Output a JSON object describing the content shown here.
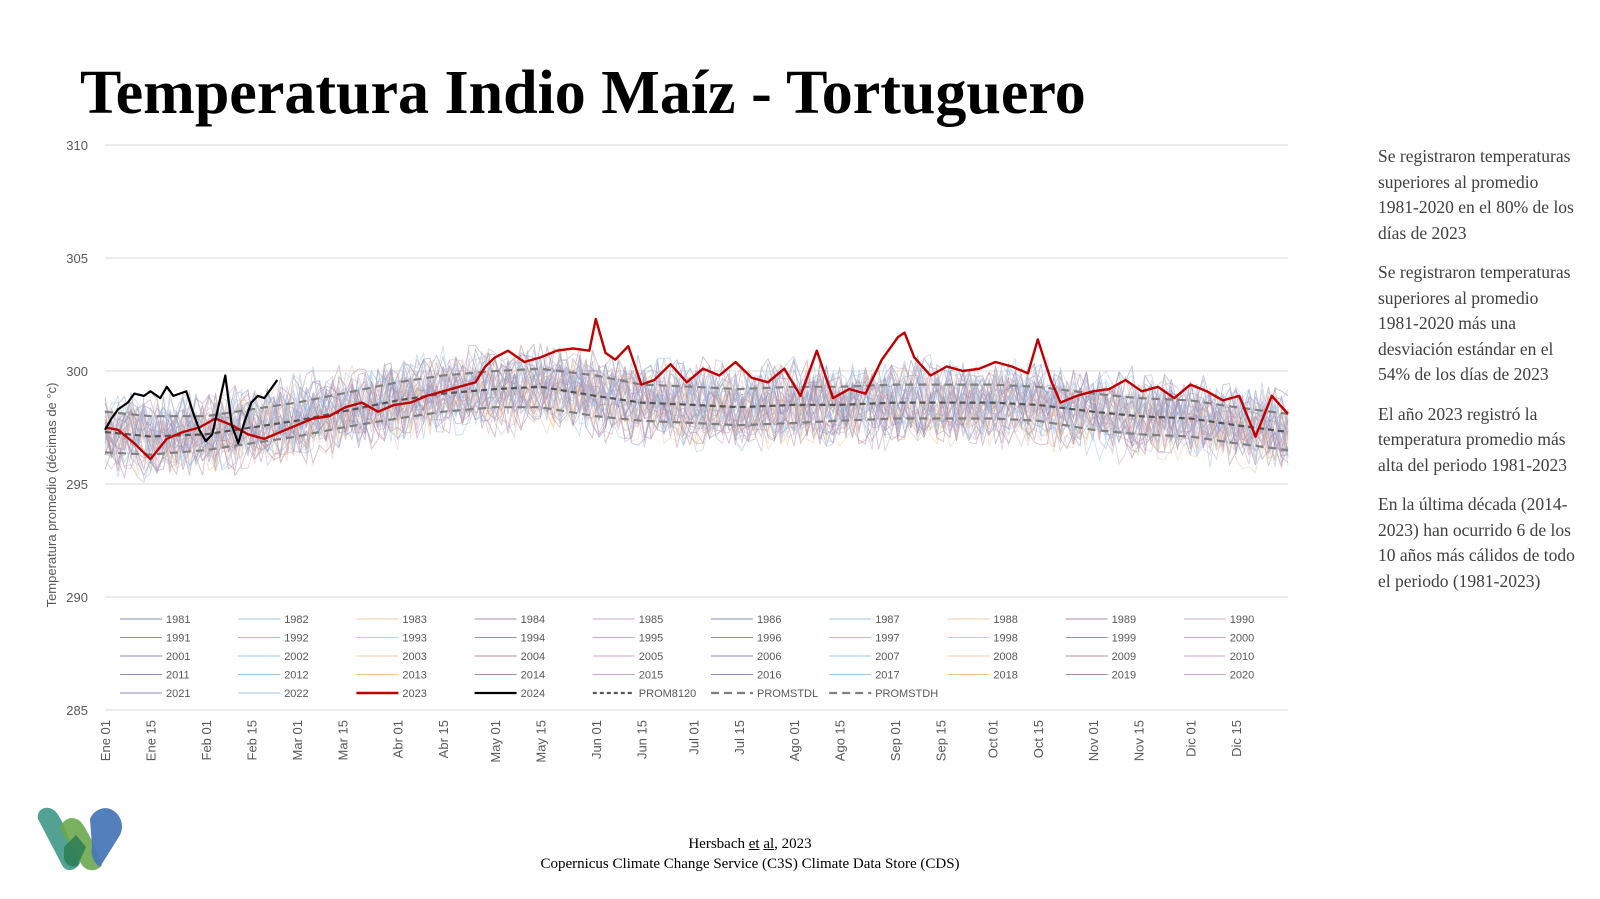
{
  "title": "Temperatura Indio Maíz - Tortuguero",
  "notes": [
    "Se registraron temperaturas superiores al promedio 1981-2020 en el 80% de los días de 2023",
    "Se registraron temperaturas superiores al promedio 1981-2020 más una desviación estándar en el 54% de los días de 2023",
    "El año 2023 registró la temperatura promedio más alta del periodo 1981-2023",
    "En la última década (2014-2023) han ocurrido 6 de los 10 años más cálidos de todo el periodo (1981-2023)"
  ],
  "source": {
    "author": "Hersbach",
    "et": "et",
    "al": "al",
    "year": ", 2023",
    "line2": "Copernicus Climate Change Service (C3S) Climate Data Store (CDS)"
  },
  "logo": {
    "icon": "w-logo-icon",
    "colors": [
      "#4a9c8c",
      "#6aa84f",
      "#4a78b8",
      "#2e7d55"
    ]
  },
  "chart_data": {
    "type": "line",
    "title": "",
    "xlabel": "",
    "ylabel": "Temperatura promedio (décimas de °c)",
    "ylim": [
      285,
      310
    ],
    "yticks": [
      285,
      290,
      295,
      300,
      305,
      310
    ],
    "grid": true,
    "legend_position": "inside-bottom",
    "xticks": [
      "Ene 01",
      "Ene 15",
      "Feb 01",
      "Feb 15",
      "Mar 01",
      "Mar 15",
      "Abr 01",
      "Abr 15",
      "May 01",
      "May 15",
      "Jun 01",
      "Jun 15",
      "Jul 01",
      "Jul 15",
      "Ago 01",
      "Ago 15",
      "Sep 01",
      "Sep 15",
      "Oct 01",
      "Oct 15",
      "Nov 01",
      "Nov 15",
      "Dic 01",
      "Dic 15"
    ],
    "xtick_days": [
      1,
      15,
      32,
      46,
      60,
      74,
      91,
      105,
      121,
      135,
      152,
      166,
      182,
      196,
      213,
      227,
      244,
      258,
      274,
      288,
      305,
      319,
      335,
      349
    ],
    "colors": {
      "palette": [
        "#8a8fb8",
        "#9fc5e8",
        "#f0c8a0",
        "#b48aa0",
        "#c9a9c9"
      ],
      "y2023": "#c00000",
      "y2024": "#000000",
      "mean": "#555555",
      "std": "#808080"
    },
    "series": [
      {
        "name": "1981",
        "style": "faint"
      },
      {
        "name": "1982",
        "style": "faint"
      },
      {
        "name": "1983",
        "style": "faint"
      },
      {
        "name": "1984",
        "style": "faint"
      },
      {
        "name": "1985",
        "style": "faint"
      },
      {
        "name": "1986",
        "style": "faint"
      },
      {
        "name": "1987",
        "style": "faint"
      },
      {
        "name": "1988",
        "style": "faint"
      },
      {
        "name": "1989",
        "style": "faint"
      },
      {
        "name": "1990",
        "style": "faint"
      },
      {
        "name": "1991",
        "style": "faint"
      },
      {
        "name": "1992",
        "style": "faint"
      },
      {
        "name": "1993",
        "style": "faint"
      },
      {
        "name": "1994",
        "style": "faint"
      },
      {
        "name": "1995",
        "style": "faint"
      },
      {
        "name": "1996",
        "style": "faint"
      },
      {
        "name": "1997",
        "style": "faint"
      },
      {
        "name": "1998",
        "style": "faint"
      },
      {
        "name": "1999",
        "style": "faint"
      },
      {
        "name": "2000",
        "style": "faint"
      },
      {
        "name": "2001",
        "style": "faint"
      },
      {
        "name": "2002",
        "style": "faint"
      },
      {
        "name": "2003",
        "style": "faint"
      },
      {
        "name": "2004",
        "style": "faint"
      },
      {
        "name": "2005",
        "style": "faint"
      },
      {
        "name": "2006",
        "style": "faint"
      },
      {
        "name": "2007",
        "style": "faint"
      },
      {
        "name": "2008",
        "style": "faint"
      },
      {
        "name": "2009",
        "style": "faint"
      },
      {
        "name": "2010",
        "style": "faint"
      },
      {
        "name": "2011",
        "style": "faint"
      },
      {
        "name": "2012",
        "style": "faint"
      },
      {
        "name": "2013",
        "style": "faint"
      },
      {
        "name": "2014",
        "style": "faint"
      },
      {
        "name": "2015",
        "style": "faint"
      },
      {
        "name": "2016",
        "style": "faint"
      },
      {
        "name": "2017",
        "style": "faint"
      },
      {
        "name": "2018",
        "style": "faint"
      },
      {
        "name": "2019",
        "style": "faint"
      },
      {
        "name": "2020",
        "style": "faint"
      },
      {
        "name": "2021",
        "style": "faint"
      },
      {
        "name": "2022",
        "style": "faint"
      },
      {
        "name": "2023",
        "style": "bold-red",
        "x": [
          1,
          5,
          10,
          15,
          20,
          25,
          30,
          35,
          40,
          45,
          50,
          55,
          60,
          65,
          70,
          75,
          80,
          85,
          90,
          95,
          100,
          105,
          110,
          115,
          118,
          121,
          125,
          130,
          135,
          140,
          145,
          150,
          152,
          155,
          158,
          162,
          166,
          170,
          175,
          180,
          185,
          190,
          195,
          200,
          205,
          210,
          215,
          220,
          225,
          230,
          235,
          240,
          245,
          247,
          250,
          255,
          260,
          265,
          270,
          275,
          280,
          285,
          288,
          292,
          295,
          300,
          305,
          310,
          315,
          320,
          325,
          330,
          335,
          340,
          345,
          350,
          355,
          360,
          365
        ],
        "y": [
          297.5,
          297.4,
          296.8,
          296.1,
          297.0,
          297.3,
          297.5,
          297.9,
          297.6,
          297.2,
          297.0,
          297.3,
          297.6,
          297.9,
          298.0,
          298.4,
          298.6,
          298.2,
          298.5,
          298.6,
          298.9,
          299.1,
          299.3,
          299.5,
          300.2,
          300.6,
          300.9,
          300.4,
          300.6,
          300.9,
          301.0,
          300.9,
          302.3,
          300.8,
          300.5,
          301.1,
          299.4,
          299.6,
          300.3,
          299.5,
          300.1,
          299.8,
          300.4,
          299.7,
          299.5,
          300.1,
          298.9,
          300.9,
          298.8,
          299.2,
          299.0,
          300.5,
          301.5,
          301.7,
          300.6,
          299.8,
          300.2,
          300.0,
          300.1,
          300.4,
          300.2,
          299.9,
          301.4,
          299.6,
          298.6,
          298.9,
          299.1,
          299.2,
          299.6,
          299.1,
          299.3,
          298.8,
          299.4,
          299.1,
          298.7,
          298.9,
          297.1,
          298.9,
          298.1
        ]
      },
      {
        "name": "2024",
        "style": "bold-black",
        "x": [
          1,
          3,
          5,
          8,
          10,
          13,
          15,
          18,
          20,
          22,
          24,
          26,
          28,
          30,
          32,
          34,
          36,
          38,
          40,
          42,
          44,
          46,
          48,
          50,
          52,
          54
        ],
        "y": [
          297.4,
          297.9,
          298.3,
          298.6,
          299.0,
          298.9,
          299.1,
          298.8,
          299.3,
          298.9,
          299.0,
          299.1,
          298.2,
          297.4,
          296.9,
          297.2,
          298.5,
          299.8,
          297.6,
          296.8,
          297.8,
          298.6,
          298.9,
          298.8,
          299.2,
          299.6
        ]
      },
      {
        "name": "PROM8120",
        "style": "mean-dashed",
        "x": [
          1,
          15,
          32,
          46,
          60,
          74,
          91,
          105,
          121,
          135,
          152,
          166,
          182,
          196,
          213,
          227,
          244,
          258,
          274,
          288,
          305,
          319,
          335,
          349,
          365
        ],
        "y": [
          297.3,
          297.1,
          297.2,
          297.5,
          297.8,
          298.2,
          298.7,
          299.0,
          299.2,
          299.3,
          298.9,
          298.6,
          298.5,
          298.4,
          298.5,
          298.5,
          298.6,
          298.6,
          298.6,
          298.5,
          298.2,
          298.0,
          297.9,
          297.6,
          297.3
        ]
      },
      {
        "name": "PROMSTDL",
        "style": "std-dashed",
        "x": [
          1,
          15,
          32,
          46,
          60,
          74,
          91,
          105,
          121,
          135,
          152,
          166,
          182,
          196,
          213,
          227,
          244,
          258,
          274,
          288,
          305,
          319,
          335,
          349,
          365
        ],
        "y": [
          296.4,
          296.3,
          296.5,
          296.8,
          297.1,
          297.5,
          297.9,
          298.2,
          298.4,
          298.4,
          298.0,
          297.8,
          297.7,
          297.6,
          297.7,
          297.8,
          297.9,
          297.9,
          297.9,
          297.8,
          297.4,
          297.2,
          297.1,
          296.8,
          296.5
        ]
      },
      {
        "name": "PROMSTDH",
        "style": "std-dashed",
        "x": [
          1,
          15,
          32,
          46,
          60,
          74,
          91,
          105,
          121,
          135,
          152,
          166,
          182,
          196,
          213,
          227,
          244,
          258,
          274,
          288,
          305,
          319,
          335,
          349,
          365
        ],
        "y": [
          298.2,
          298.0,
          298.0,
          298.3,
          298.6,
          299.0,
          299.5,
          299.8,
          300.0,
          300.1,
          299.8,
          299.4,
          299.3,
          299.2,
          299.3,
          299.3,
          299.4,
          299.4,
          299.4,
          299.3,
          299.0,
          298.8,
          298.7,
          298.4,
          298.1
        ]
      }
    ]
  }
}
